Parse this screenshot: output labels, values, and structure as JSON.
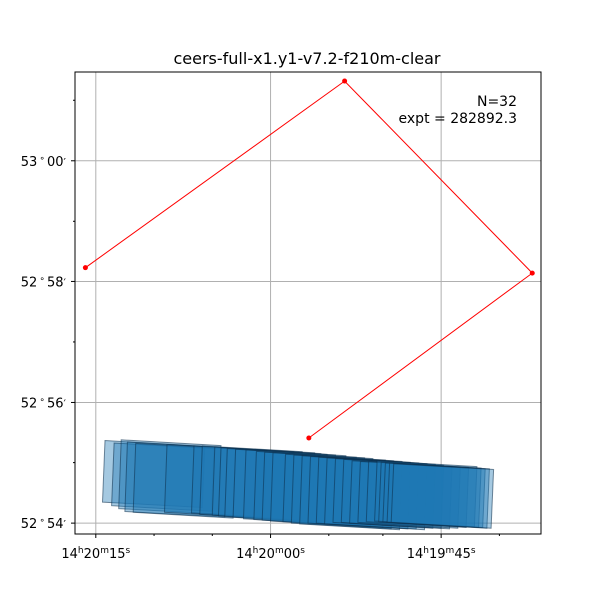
{
  "chart_data": {
    "type": "scatter",
    "title": "ceers-full-x1.y1-v7.2-f210m-clear",
    "annotation": {
      "count_label": "N=32",
      "expt_label": "expt = 282892.3"
    },
    "x_axis": {
      "label": "",
      "direction": "right-ascension-decreasing-to-right",
      "range": [
        14.338,
        14.3268
      ],
      "ticks": [
        {
          "value": 14.3375,
          "label_h": "14",
          "label_m": "20",
          "label_s": "15"
        },
        {
          "value": 14.3333,
          "label_h": "14",
          "label_m": "20",
          "label_s": "00"
        },
        {
          "value": 14.3292,
          "label_h": "14",
          "label_m": "19",
          "label_s": "45"
        }
      ],
      "minor_ticks": [
        14.3361,
        14.3347,
        14.3319,
        14.3306,
        14.3278
      ]
    },
    "y_axis": {
      "label": "",
      "range": [
        52.897,
        53.0245
      ],
      "ticks": [
        {
          "value": 52.9,
          "label_d": "52",
          "label_m": "54"
        },
        {
          "value": 52.9333,
          "label_d": "52",
          "label_m": "56"
        },
        {
          "value": 52.9667,
          "label_d": "52",
          "label_m": "58"
        },
        {
          "value": 53.0,
          "label_d": "53",
          "label_m": "00"
        }
      ],
      "minor_ticks": [
        52.9167,
        52.95,
        52.9833,
        53.0167
      ]
    },
    "grid": true,
    "outline": {
      "name": "",
      "color": "#ff0000",
      "points": [
        [
          14.33775,
          52.9705
        ],
        [
          14.33152,
          53.022
        ],
        [
          14.32701,
          52.969
        ],
        [
          14.33238,
          52.9235
        ]
      ]
    },
    "exposures": {
      "color": "#1f77b4",
      "count": 32,
      "footprints": [
        [
          [
            14.33734,
            52.9058
          ],
          [
            14.33728,
            52.9228
          ],
          [
            14.33488,
            52.9212
          ],
          [
            14.33494,
            52.9043
          ]
        ],
        [
          [
            14.33712,
            52.9048
          ],
          [
            14.33706,
            52.9221
          ],
          [
            14.33466,
            52.9205
          ],
          [
            14.33472,
            52.9033
          ]
        ],
        [
          [
            14.33695,
            52.904
          ],
          [
            14.33689,
            52.923
          ],
          [
            14.33449,
            52.9214
          ],
          [
            14.33455,
            52.9025
          ]
        ],
        [
          [
            14.3368,
            52.9032
          ],
          [
            14.33674,
            52.9224
          ],
          [
            14.33434,
            52.9208
          ],
          [
            14.3344,
            52.9017
          ]
        ],
        [
          [
            14.3366,
            52.903
          ],
          [
            14.33654,
            52.922
          ],
          [
            14.33414,
            52.9204
          ],
          [
            14.3342,
            52.9014
          ]
        ],
        [
          [
            14.33585,
            52.903
          ],
          [
            14.33579,
            52.9217
          ],
          [
            14.33339,
            52.9201
          ],
          [
            14.33345,
            52.9014
          ]
        ],
        [
          [
            14.3352,
            52.9028
          ],
          [
            14.33514,
            52.9213
          ],
          [
            14.33274,
            52.9197
          ],
          [
            14.3328,
            52.9012
          ]
        ],
        [
          [
            14.335,
            52.9024
          ],
          [
            14.33494,
            52.9213
          ],
          [
            14.33254,
            52.9197
          ],
          [
            14.3326,
            52.9008
          ]
        ],
        [
          [
            14.3347,
            52.9022
          ],
          [
            14.33464,
            52.921
          ],
          [
            14.33224,
            52.9194
          ],
          [
            14.3323,
            52.9006
          ]
        ],
        [
          [
            14.33455,
            52.902
          ],
          [
            14.33449,
            52.9208
          ],
          [
            14.33209,
            52.9192
          ],
          [
            14.33215,
            52.9004
          ]
        ],
        [
          [
            14.3344,
            52.9018
          ],
          [
            14.33434,
            52.9206
          ],
          [
            14.33194,
            52.919
          ],
          [
            14.332,
            52.9002
          ]
        ],
        [
          [
            14.3342,
            52.9016
          ],
          [
            14.33414,
            52.9204
          ],
          [
            14.33174,
            52.9188
          ],
          [
            14.3318,
            52.9
          ]
        ],
        [
          [
            14.33395,
            52.9012
          ],
          [
            14.33389,
            52.9202
          ],
          [
            14.33149,
            52.9186
          ],
          [
            14.33155,
            52.8996
          ]
        ],
        [
          [
            14.3337,
            52.901
          ],
          [
            14.33364,
            52.9198
          ],
          [
            14.33124,
            52.9182
          ],
          [
            14.3313,
            52.8994
          ]
        ],
        [
          [
            14.3335,
            52.9008
          ],
          [
            14.33344,
            52.9196
          ],
          [
            14.33104,
            52.918
          ],
          [
            14.3311,
            52.8992
          ]
        ],
        [
          [
            14.3333,
            52.9006
          ],
          [
            14.33324,
            52.9194
          ],
          [
            14.33084,
            52.9178
          ],
          [
            14.3309,
            52.899
          ]
        ],
        [
          [
            14.333,
            52.9004
          ],
          [
            14.33294,
            52.919
          ],
          [
            14.33054,
            52.9174
          ],
          [
            14.3306,
            52.8988
          ]
        ],
        [
          [
            14.3328,
            52.9
          ],
          [
            14.33274,
            52.9188
          ],
          [
            14.33034,
            52.9172
          ],
          [
            14.3304,
            52.8984
          ]
        ],
        [
          [
            14.3326,
            52.8998
          ],
          [
            14.33254,
            52.9186
          ],
          [
            14.33014,
            52.917
          ],
          [
            14.3302,
            52.8982
          ]
        ],
        [
          [
            14.3324,
            52.9
          ],
          [
            14.33234,
            52.9184
          ],
          [
            14.32994,
            52.9168
          ],
          [
            14.33,
            52.8984
          ]
        ],
        [
          [
            14.3322,
            52.9
          ],
          [
            14.33214,
            52.9182
          ],
          [
            14.32974,
            52.9166
          ],
          [
            14.3298,
            52.8984
          ]
        ],
        [
          [
            14.332,
            52.8998
          ],
          [
            14.33194,
            52.918
          ],
          [
            14.32954,
            52.9164
          ],
          [
            14.3296,
            52.8982
          ]
        ],
        [
          [
            14.3318,
            52.9002
          ],
          [
            14.33174,
            52.9178
          ],
          [
            14.32934,
            52.9162
          ],
          [
            14.3294,
            52.8986
          ]
        ],
        [
          [
            14.3316,
            52.9002
          ],
          [
            14.33154,
            52.9176
          ],
          [
            14.32914,
            52.916
          ],
          [
            14.3292,
            52.8986
          ]
        ],
        [
          [
            14.3314,
            52.9
          ],
          [
            14.33134,
            52.9172
          ],
          [
            14.32894,
            52.9156
          ],
          [
            14.329,
            52.8984
          ]
        ],
        [
          [
            14.3312,
            52.9002
          ],
          [
            14.33114,
            52.917
          ],
          [
            14.32874,
            52.9154
          ],
          [
            14.3288,
            52.8986
          ]
        ],
        [
          [
            14.331,
            52.9004
          ],
          [
            14.33094,
            52.917
          ],
          [
            14.32854,
            52.9154
          ],
          [
            14.3286,
            52.8988
          ]
        ],
        [
          [
            14.3308,
            52.9006
          ],
          [
            14.33074,
            52.9172
          ],
          [
            14.32834,
            52.9156
          ],
          [
            14.3284,
            52.899
          ]
        ],
        [
          [
            14.3307,
            52.9004
          ],
          [
            14.33064,
            52.9168
          ],
          [
            14.32824,
            52.9152
          ],
          [
            14.3283,
            52.8988
          ]
        ],
        [
          [
            14.3306,
            52.9004
          ],
          [
            14.33054,
            52.9166
          ],
          [
            14.32814,
            52.915
          ],
          [
            14.3282,
            52.8988
          ]
        ],
        [
          [
            14.3305,
            52.9002
          ],
          [
            14.33044,
            52.9166
          ],
          [
            14.32804,
            52.915
          ],
          [
            14.3281,
            52.8986
          ]
        ],
        [
          [
            14.3304,
            52.9002
          ],
          [
            14.33034,
            52.9164
          ],
          [
            14.32794,
            52.9148
          ],
          [
            14.328,
            52.8986
          ]
        ]
      ]
    }
  }
}
